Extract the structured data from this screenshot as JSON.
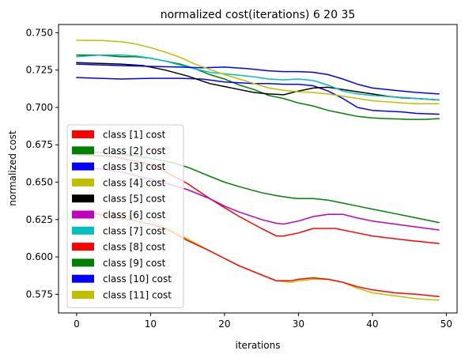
{
  "chart_data": {
    "type": "line",
    "title": "normalized cost(iterations) 6 20 35",
    "xlabel": "iterations",
    "ylabel": "normalized cost",
    "xlim": [
      -2.45,
      51.45
    ],
    "ylim": [
      0.5625,
      0.7555
    ],
    "xticks": [
      0,
      10,
      20,
      30,
      40,
      50
    ],
    "xtick_labels": [
      "0",
      "10",
      "20",
      "30",
      "40",
      "50"
    ],
    "yticks": [
      0.575,
      0.6,
      0.625,
      0.65,
      0.675,
      0.7,
      0.725,
      0.75
    ],
    "ytick_labels": [
      "0.575",
      "0.600",
      "0.625",
      "0.650",
      "0.675",
      "0.700",
      "0.725",
      "0.750"
    ],
    "grid": false,
    "legend_position": "lower-left",
    "series": [
      {
        "name": "class [1] cost",
        "color": "#ff0000",
        "x": [
          0,
          2,
          5,
          8,
          10,
          12,
          15,
          18,
          20,
          22,
          25,
          27,
          28,
          30,
          32,
          35,
          38,
          40,
          45,
          49
        ],
        "y": [
          0.668,
          0.668,
          0.667,
          0.664,
          0.662,
          0.657,
          0.649,
          0.639,
          0.633,
          0.627,
          0.619,
          0.614,
          0.614,
          0.616,
          0.619,
          0.619,
          0.616,
          0.614,
          0.611,
          0.609
        ]
      },
      {
        "name": "class [2] cost",
        "color": "#008000",
        "x": [
          0,
          3,
          6,
          8,
          10,
          12,
          14,
          16,
          18,
          20,
          22,
          24,
          26,
          28,
          30,
          32,
          34,
          36,
          38,
          40,
          42,
          45,
          47,
          49
        ],
        "y": [
          0.735,
          0.735,
          0.734,
          0.734,
          0.733,
          0.731,
          0.729,
          0.726,
          0.722,
          0.719,
          0.715,
          0.712,
          0.708,
          0.706,
          0.703,
          0.701,
          0.698,
          0.696,
          0.694,
          0.693,
          0.6925,
          0.692,
          0.692,
          0.6925
        ]
      },
      {
        "name": "class [3] cost",
        "color": "#0000ff",
        "x": [
          0,
          3,
          6,
          10,
          14,
          17,
          20,
          24,
          26,
          28,
          30,
          32,
          34,
          36,
          38,
          40,
          44,
          46,
          49
        ],
        "y": [
          0.72,
          0.7195,
          0.719,
          0.7195,
          0.7195,
          0.719,
          0.717,
          0.716,
          0.716,
          0.7155,
          0.7155,
          0.7145,
          0.711,
          0.706,
          0.7,
          0.698,
          0.697,
          0.696,
          0.6955
        ]
      },
      {
        "name": "class [4] cost",
        "color": "#bfbf00",
        "x": [
          0,
          2,
          5,
          8,
          10,
          12,
          15,
          18,
          20,
          22,
          25,
          27,
          29,
          30,
          32,
          34,
          36,
          38,
          40,
          43,
          46,
          49
        ],
        "y": [
          0.63,
          0.63,
          0.629,
          0.626,
          0.624,
          0.62,
          0.612,
          0.604,
          0.599,
          0.594,
          0.588,
          0.584,
          0.583,
          0.584,
          0.585,
          0.585,
          0.583,
          0.579,
          0.576,
          0.574,
          0.572,
          0.571
        ]
      },
      {
        "name": "class [5] cost",
        "color": "#000000",
        "x": [
          0,
          3,
          6,
          9,
          12,
          15,
          18,
          20,
          22,
          24,
          26,
          28,
          30,
          32,
          34,
          36,
          38,
          40,
          42,
          44,
          46,
          49
        ],
        "y": [
          0.73,
          0.7295,
          0.729,
          0.728,
          0.725,
          0.721,
          0.716,
          0.714,
          0.712,
          0.71,
          0.709,
          0.7085,
          0.711,
          0.713,
          0.7135,
          0.712,
          0.7105,
          0.709,
          0.7075,
          0.7065,
          0.706,
          0.705
        ]
      },
      {
        "name": "class [6] cost",
        "color": "#bf00bf",
        "x": [
          0,
          3,
          6,
          10,
          13,
          15,
          18,
          20,
          22,
          25,
          27,
          28,
          30,
          32,
          34,
          36,
          38,
          40,
          43,
          46,
          49
        ],
        "y": [
          0.659,
          0.659,
          0.657,
          0.652,
          0.648,
          0.645,
          0.639,
          0.634,
          0.63,
          0.625,
          0.6225,
          0.622,
          0.624,
          0.627,
          0.6285,
          0.6285,
          0.626,
          0.624,
          0.622,
          0.62,
          0.618
        ]
      },
      {
        "name": "class [7] cost",
        "color": "#00bfbf",
        "x": [
          0,
          3,
          6,
          8,
          10,
          12,
          15,
          18,
          20,
          22,
          24,
          26,
          28,
          30,
          32,
          34,
          36,
          38,
          40,
          43,
          46,
          49
        ],
        "y": [
          0.734,
          0.735,
          0.735,
          0.7345,
          0.733,
          0.731,
          0.727,
          0.7235,
          0.7225,
          0.7215,
          0.7205,
          0.719,
          0.7185,
          0.719,
          0.718,
          0.715,
          0.711,
          0.709,
          0.708,
          0.707,
          0.706,
          0.705
        ]
      },
      {
        "name": "class [8] cost",
        "color": "#ff0000",
        "x": [
          0,
          2,
          5,
          8,
          10,
          12,
          15,
          18,
          20,
          22,
          25,
          27,
          29,
          30,
          32,
          34,
          36,
          38,
          40,
          43,
          46,
          49
        ],
        "y": [
          0.63,
          0.629,
          0.627,
          0.624,
          0.622,
          0.619,
          0.611,
          0.604,
          0.599,
          0.594,
          0.588,
          0.584,
          0.584,
          0.585,
          0.586,
          0.585,
          0.583,
          0.58,
          0.578,
          0.576,
          0.575,
          0.5735
        ]
      },
      {
        "name": "class [9] cost",
        "color": "#008000",
        "x": [
          0,
          3,
          6,
          8,
          10,
          13,
          15,
          18,
          20,
          22,
          25,
          27,
          29,
          30,
          32,
          34,
          36,
          38,
          40,
          43,
          46,
          49
        ],
        "y": [
          0.67,
          0.67,
          0.6685,
          0.6675,
          0.666,
          0.663,
          0.66,
          0.654,
          0.65,
          0.647,
          0.643,
          0.641,
          0.6395,
          0.639,
          0.639,
          0.638,
          0.636,
          0.634,
          0.632,
          0.629,
          0.626,
          0.623
        ]
      },
      {
        "name": "class [10] cost",
        "color": "#0000ff",
        "x": [
          0,
          3,
          6,
          10,
          14,
          17,
          20,
          23,
          26,
          28,
          30,
          32,
          34,
          36,
          38,
          40,
          44,
          46,
          49
        ],
        "y": [
          0.729,
          0.7285,
          0.728,
          0.7275,
          0.727,
          0.7265,
          0.727,
          0.726,
          0.7245,
          0.724,
          0.724,
          0.7235,
          0.722,
          0.719,
          0.7155,
          0.713,
          0.711,
          0.71,
          0.709
        ]
      },
      {
        "name": "class [11] cost",
        "color": "#bfbf00",
        "x": [
          0,
          3,
          6,
          8,
          10,
          12,
          14,
          16,
          18,
          20,
          22,
          24,
          26,
          28,
          30,
          32,
          34,
          36,
          38,
          40,
          44,
          46,
          49
        ],
        "y": [
          0.745,
          0.7448,
          0.744,
          0.7425,
          0.74,
          0.737,
          0.7335,
          0.729,
          0.7255,
          0.722,
          0.719,
          0.716,
          0.713,
          0.7115,
          0.7105,
          0.71,
          0.709,
          0.7075,
          0.706,
          0.7045,
          0.703,
          0.7025,
          0.7025
        ]
      }
    ]
  }
}
